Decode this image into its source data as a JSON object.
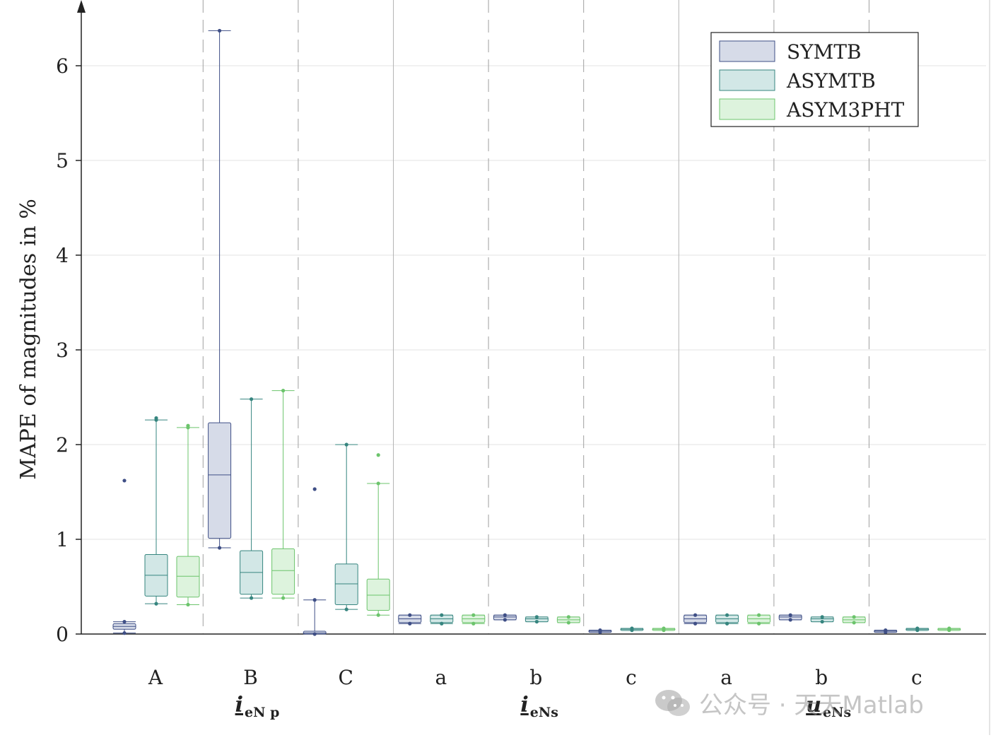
{
  "chart_data": {
    "type": "box",
    "ylabel": "MAPE of magnitudes in %",
    "ylim": [
      0,
      6.5
    ],
    "yticks": [
      "0",
      "1",
      "2",
      "3",
      "4",
      "5",
      "6"
    ],
    "grid": true,
    "legend_position": "top-right",
    "series": [
      {
        "name": "SYMTB",
        "fill": "#d6dbe8",
        "stroke": "#3f4f86"
      },
      {
        "name": "ASYMTB",
        "fill": "#d2e7e6",
        "stroke": "#36857f"
      },
      {
        "name": "ASYM3PHT",
        "fill": "#ddf3dd",
        "stroke": "#6cc46c"
      }
    ],
    "groups": [
      {
        "main": "i",
        "sub": "eN p",
        "categories": [
          "A",
          "B",
          "C"
        ]
      },
      {
        "main": "i",
        "sub": "eNs",
        "categories": [
          "a",
          "b",
          "c"
        ]
      },
      {
        "main": "u",
        "sub": "eNs",
        "categories": [
          "a",
          "b",
          "c"
        ]
      }
    ],
    "boxes": [
      [
        {
          "min": 0.01,
          "q1": 0.05,
          "median": 0.08,
          "q3": 0.11,
          "max": 0.13,
          "outliers": [
            1.62
          ]
        },
        {
          "min": 0.32,
          "q1": 0.4,
          "median": 0.62,
          "q3": 0.84,
          "max": 2.26,
          "outliers": [
            2.28
          ]
        },
        {
          "min": 0.31,
          "q1": 0.39,
          "median": 0.61,
          "q3": 0.82,
          "max": 2.18,
          "outliers": [
            2.2
          ]
        }
      ],
      [
        {
          "min": 0.91,
          "q1": 1.01,
          "median": 1.68,
          "q3": 2.23,
          "max": 6.37,
          "outliers": []
        },
        {
          "min": 0.38,
          "q1": 0.42,
          "median": 0.65,
          "q3": 0.88,
          "max": 2.48,
          "outliers": []
        },
        {
          "min": 0.38,
          "q1": 0.42,
          "median": 0.67,
          "q3": 0.9,
          "max": 2.57,
          "outliers": []
        }
      ],
      [
        {
          "min": 0.0,
          "q1": 0.0,
          "median": 0.01,
          "q3": 0.03,
          "max": 0.36,
          "outliers": [
            1.53
          ]
        },
        {
          "min": 0.26,
          "q1": 0.31,
          "median": 0.53,
          "q3": 0.74,
          "max": 2.0,
          "outliers": []
        },
        {
          "min": 0.2,
          "q1": 0.25,
          "median": 0.41,
          "q3": 0.58,
          "max": 1.59,
          "outliers": [
            1.89
          ]
        }
      ],
      [
        {
          "min": 0.11,
          "q1": 0.12,
          "median": 0.16,
          "q3": 0.2,
          "max": 0.2,
          "outliers": []
        },
        {
          "min": 0.11,
          "q1": 0.12,
          "median": 0.16,
          "q3": 0.2,
          "max": 0.2,
          "outliers": []
        },
        {
          "min": 0.11,
          "q1": 0.12,
          "median": 0.16,
          "q3": 0.2,
          "max": 0.2,
          "outliers": []
        }
      ],
      [
        {
          "min": 0.15,
          "q1": 0.15,
          "median": 0.18,
          "q3": 0.2,
          "max": 0.2,
          "outliers": []
        },
        {
          "min": 0.13,
          "q1": 0.13,
          "median": 0.16,
          "q3": 0.18,
          "max": 0.18,
          "outliers": []
        },
        {
          "min": 0.12,
          "q1": 0.12,
          "median": 0.15,
          "q3": 0.18,
          "max": 0.18,
          "outliers": []
        }
      ],
      [
        {
          "min": 0.02,
          "q1": 0.02,
          "median": 0.03,
          "q3": 0.04,
          "max": 0.04,
          "outliers": []
        },
        {
          "min": 0.04,
          "q1": 0.04,
          "median": 0.05,
          "q3": 0.06,
          "max": 0.06,
          "outliers": []
        },
        {
          "min": 0.04,
          "q1": 0.04,
          "median": 0.05,
          "q3": 0.06,
          "max": 0.06,
          "outliers": []
        }
      ],
      [
        {
          "min": 0.11,
          "q1": 0.12,
          "median": 0.16,
          "q3": 0.2,
          "max": 0.2,
          "outliers": []
        },
        {
          "min": 0.11,
          "q1": 0.12,
          "median": 0.16,
          "q3": 0.2,
          "max": 0.2,
          "outliers": []
        },
        {
          "min": 0.11,
          "q1": 0.12,
          "median": 0.16,
          "q3": 0.2,
          "max": 0.2,
          "outliers": []
        }
      ],
      [
        {
          "min": 0.15,
          "q1": 0.15,
          "median": 0.18,
          "q3": 0.2,
          "max": 0.2,
          "outliers": []
        },
        {
          "min": 0.13,
          "q1": 0.13,
          "median": 0.16,
          "q3": 0.18,
          "max": 0.18,
          "outliers": []
        },
        {
          "min": 0.12,
          "q1": 0.12,
          "median": 0.15,
          "q3": 0.18,
          "max": 0.18,
          "outliers": []
        }
      ],
      [
        {
          "min": 0.02,
          "q1": 0.02,
          "median": 0.03,
          "q3": 0.04,
          "max": 0.04,
          "outliers": []
        },
        {
          "min": 0.04,
          "q1": 0.04,
          "median": 0.05,
          "q3": 0.06,
          "max": 0.06,
          "outliers": []
        },
        {
          "min": 0.04,
          "q1": 0.04,
          "median": 0.05,
          "q3": 0.06,
          "max": 0.06,
          "outliers": []
        }
      ]
    ]
  },
  "watermark": {
    "text": "公众号 · 天天Matlab",
    "icon": "wechat-icon"
  }
}
